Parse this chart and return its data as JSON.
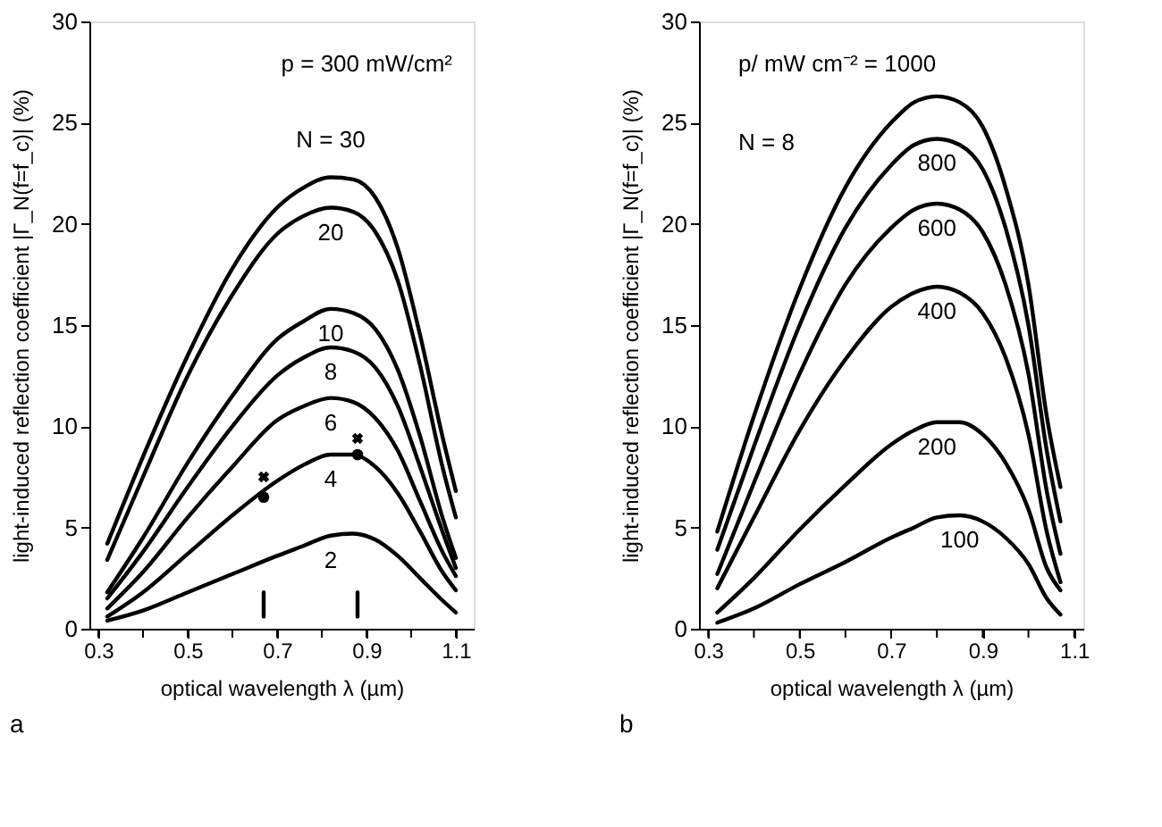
{
  "chart_data": [
    {
      "type": "line",
      "title": "a",
      "xlabel": "optical wavelength λ  (µm)",
      "ylabel": "light-induced reflection coefficient |Γ_N(f=f_c)|  (%)",
      "xlim": [
        0.28,
        1.14
      ],
      "ylim": [
        0,
        30
      ],
      "xticks": [
        {
          "value": 0.3,
          "label": "0.3"
        },
        {
          "value": 0.4,
          "label": null
        },
        {
          "value": 0.5,
          "label": "0.5"
        },
        {
          "value": 0.6,
          "label": null
        },
        {
          "value": 0.7,
          "label": "0.7"
        },
        {
          "value": 0.8,
          "label": null
        },
        {
          "value": 0.9,
          "label": "0.9"
        },
        {
          "value": 1.0,
          "label": null
        },
        {
          "value": 1.1,
          "label": "1.1"
        }
      ],
      "yticks": [
        0,
        5,
        10,
        15,
        20,
        25,
        30
      ],
      "grid": false,
      "line_style": "solid",
      "marker": "none",
      "series": [
        {
          "color": "#000000",
          "x": [
            0.32,
            0.4,
            0.5,
            0.6,
            0.7,
            0.76,
            0.82,
            0.87,
            0.92,
            0.97,
            1.02,
            1.07,
            1.1
          ],
          "values": [
            4.2,
            8.5,
            13.5,
            17.8,
            20.8,
            21.8,
            22.3,
            22.2,
            21.3,
            18.8,
            14.5,
            9.5,
            6.8
          ]
        },
        {
          "color": "#000000",
          "x": [
            0.32,
            0.4,
            0.5,
            0.6,
            0.7,
            0.76,
            0.82,
            0.87,
            0.92,
            0.97,
            1.02,
            1.07,
            1.1
          ],
          "values": [
            3.4,
            7.5,
            12.5,
            16.5,
            19.5,
            20.4,
            20.8,
            20.6,
            19.6,
            17.2,
            13,
            8,
            5.5
          ]
        },
        {
          "color": "#000000",
          "x": [
            0.32,
            0.4,
            0.5,
            0.6,
            0.7,
            0.76,
            0.82,
            0.87,
            0.92,
            0.97,
            1.02,
            1.07,
            1.1
          ],
          "values": [
            1.8,
            4.5,
            8.2,
            11.5,
            14.3,
            15.2,
            15.8,
            15.6,
            14.8,
            12.8,
            9.5,
            5.5,
            3.5
          ]
        },
        {
          "color": "#000000",
          "x": [
            0.32,
            0.4,
            0.5,
            0.6,
            0.7,
            0.76,
            0.82,
            0.87,
            0.92,
            0.97,
            1.02,
            1.07,
            1.1
          ],
          "values": [
            1.5,
            3.8,
            7,
            10,
            12.5,
            13.4,
            13.9,
            13.7,
            12.9,
            11,
            8,
            4.8,
            3.0
          ]
        },
        {
          "color": "#000000",
          "x": [
            0.32,
            0.4,
            0.5,
            0.6,
            0.7,
            0.76,
            0.82,
            0.87,
            0.92,
            0.97,
            1.02,
            1.07,
            1.1
          ],
          "values": [
            1.0,
            2.8,
            5.5,
            8,
            10.3,
            11.0,
            11.4,
            11.2,
            10.4,
            8.8,
            6.3,
            3.8,
            2.6
          ]
        },
        {
          "color": "#000000",
          "x": [
            0.32,
            0.4,
            0.5,
            0.6,
            0.7,
            0.76,
            0.82,
            0.87,
            0.92,
            0.97,
            1.02,
            1.07,
            1.1
          ],
          "values": [
            0.6,
            1.8,
            3.7,
            5.6,
            7.3,
            8.1,
            8.6,
            8.6,
            8.0,
            6.7,
            4.8,
            2.8,
            1.9
          ]
        },
        {
          "color": "#000000",
          "x": [
            0.32,
            0.4,
            0.5,
            0.6,
            0.7,
            0.76,
            0.82,
            0.87,
            0.92,
            0.97,
            1.02,
            1.07,
            1.1
          ],
          "values": [
            0.4,
            0.9,
            1.8,
            2.7,
            3.6,
            4.1,
            4.6,
            4.7,
            4.4,
            3.6,
            2.5,
            1.4,
            0.8
          ]
        },
        {
          "type": "scatter",
          "marker": "circle",
          "color": "#000000",
          "x": [
            0.67,
            0.88
          ],
          "values": [
            6.5,
            8.6
          ]
        },
        {
          "type": "scatter",
          "marker": "cross",
          "color": "#000000",
          "x": [
            0.67,
            0.88
          ],
          "values": [
            7.5,
            9.4
          ]
        },
        {
          "color": "#000000",
          "x": [
            0.67,
            0.67
          ],
          "values": [
            0.6,
            1.8
          ]
        },
        {
          "color": "#000000",
          "x": [
            0.88,
            0.88
          ],
          "values": [
            0.6,
            1.8
          ]
        }
      ],
      "annotations": [
        "p = 300 mW/cm²",
        {
          "text": "N = 30",
          "x": 0.82,
          "y": 22.3
        },
        {
          "text": "20",
          "x": 0.82,
          "y": 20.8
        },
        {
          "text": "10",
          "x": 0.82,
          "y": 15.8
        },
        {
          "text": "8",
          "x": 0.82,
          "y": 13.9
        },
        {
          "text": "6",
          "x": 0.82,
          "y": 11.4
        },
        {
          "text": "4",
          "x": 0.82,
          "y": 8.6
        },
        {
          "text": "2",
          "x": 0.82,
          "y": 4.6
        }
      ]
    },
    {
      "type": "line",
      "title": "b",
      "xlabel": "optical wavelength λ  (µm)",
      "ylabel": "light-induced reflection coefficient |Γ_N(f=f_c)|  (%)",
      "xlim": [
        0.28,
        1.12
      ],
      "ylim": [
        0,
        30
      ],
      "xticks": [
        {
          "value": 0.3,
          "label": "0.3"
        },
        {
          "value": 0.4,
          "label": null
        },
        {
          "value": 0.5,
          "label": "0.5"
        },
        {
          "value": 0.6,
          "label": null
        },
        {
          "value": 0.7,
          "label": "0.7"
        },
        {
          "value": 0.8,
          "label": null
        },
        {
          "value": 0.9,
          "label": "0.9"
        },
        {
          "value": 1.0,
          "label": null
        },
        {
          "value": 1.1,
          "label": "1.1"
        }
      ],
      "yticks": [
        0,
        5,
        10,
        15,
        20,
        25,
        30
      ],
      "grid": false,
      "line_style": "solid",
      "marker": "none",
      "series": [
        {
          "color": "#000000",
          "x": [
            0.32,
            0.4,
            0.5,
            0.6,
            0.7,
            0.75,
            0.8,
            0.85,
            0.9,
            0.95,
            1.0,
            1.04,
            1.07
          ],
          "values": [
            4.8,
            10.5,
            16.8,
            21.8,
            25.0,
            26.0,
            26.3,
            26.0,
            24.8,
            21.8,
            17,
            10.5,
            7.0
          ]
        },
        {
          "color": "#000000",
          "x": [
            0.32,
            0.4,
            0.5,
            0.6,
            0.7,
            0.75,
            0.8,
            0.85,
            0.9,
            0.95,
            1.0,
            1.04,
            1.07
          ],
          "values": [
            3.9,
            9.0,
            15,
            19.8,
            22.9,
            23.9,
            24.2,
            23.9,
            22.7,
            19.8,
            15,
            8.8,
            5.3
          ]
        },
        {
          "color": "#000000",
          "x": [
            0.32,
            0.4,
            0.5,
            0.6,
            0.7,
            0.75,
            0.8,
            0.85,
            0.9,
            0.95,
            1.0,
            1.04,
            1.07
          ],
          "values": [
            2.7,
            7.2,
            12.6,
            17,
            19.8,
            20.7,
            21.0,
            20.7,
            19.6,
            17,
            12.6,
            6.8,
            3.7
          ]
        },
        {
          "color": "#000000",
          "x": [
            0.32,
            0.4,
            0.5,
            0.6,
            0.7,
            0.75,
            0.8,
            0.85,
            0.9,
            0.95,
            1.0,
            1.04,
            1.07
          ],
          "values": [
            2.0,
            5.5,
            9.8,
            13.3,
            15.9,
            16.6,
            16.9,
            16.6,
            15.6,
            13.4,
            9.6,
            4.8,
            2.3
          ]
        },
        {
          "color": "#000000",
          "x": [
            0.32,
            0.4,
            0.5,
            0.6,
            0.7,
            0.75,
            0.8,
            0.85,
            0.9,
            0.95,
            1.0,
            1.04,
            1.07
          ],
          "values": [
            0.8,
            2.5,
            4.9,
            7.1,
            9.1,
            9.8,
            10.2,
            10.2,
            9.6,
            8.2,
            5.9,
            3.0,
            1.9
          ]
        },
        {
          "color": "#000000",
          "x": [
            0.32,
            0.4,
            0.5,
            0.6,
            0.7,
            0.75,
            0.8,
            0.85,
            0.9,
            0.95,
            1.0,
            1.04,
            1.07
          ],
          "values": [
            0.3,
            1.0,
            2.2,
            3.3,
            4.5,
            5.0,
            5.5,
            5.6,
            5.3,
            4.5,
            3.2,
            1.5,
            0.7
          ]
        }
      ],
      "annotations": [
        "p/ mW cm⁻² = 1000",
        "N = 8",
        {
          "text": "800",
          "x": 0.8,
          "y": 24.2
        },
        {
          "text": "600",
          "x": 0.8,
          "y": 21.0
        },
        {
          "text": "400",
          "x": 0.8,
          "y": 16.9
        },
        {
          "text": "200",
          "x": 0.8,
          "y": 10.2
        },
        {
          "text": "100",
          "x": 0.85,
          "y": 5.6
        }
      ]
    }
  ]
}
